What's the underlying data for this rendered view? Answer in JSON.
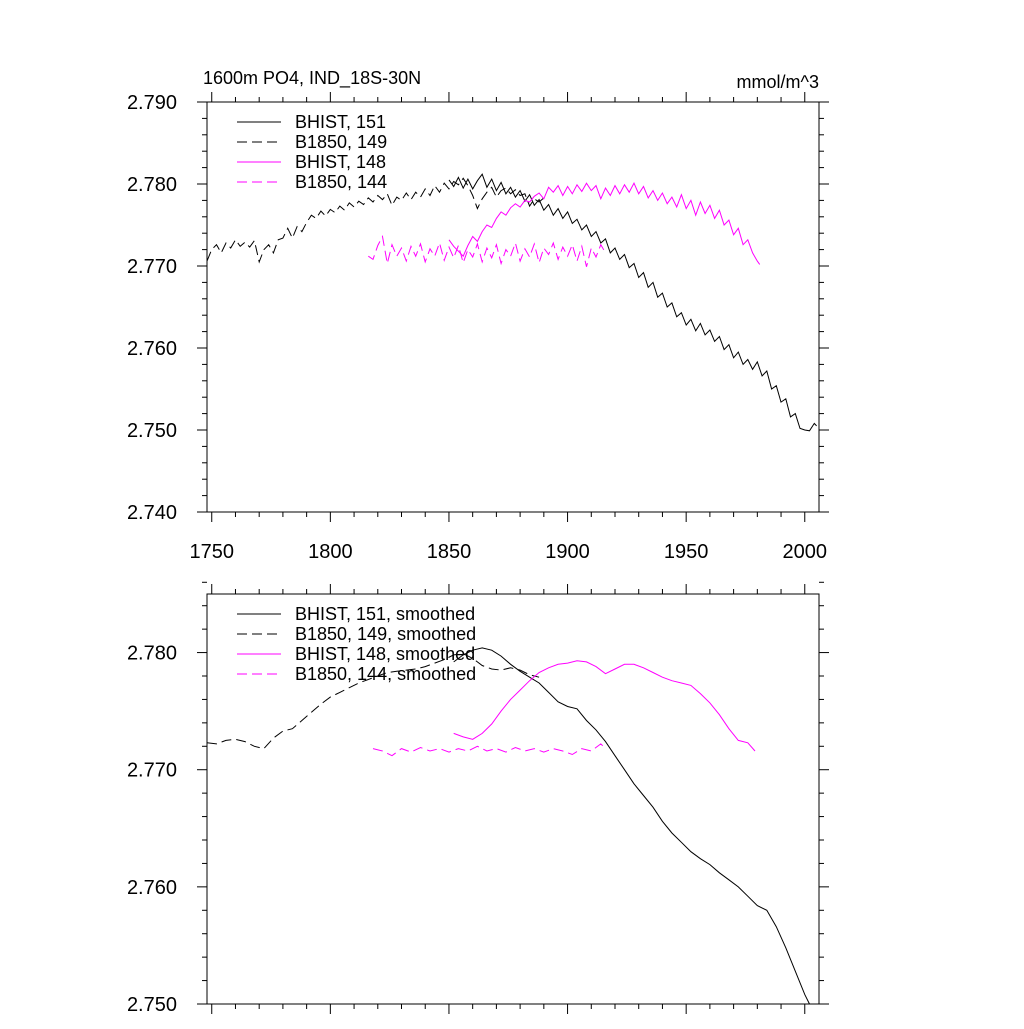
{
  "header": {
    "title": "1600m PO4, IND_18S-30N",
    "units": "mmol/m^3"
  },
  "colors": {
    "black_series": "#000000",
    "magenta_series": "#ff00ff",
    "axes": "#000000"
  },
  "chart_data": [
    {
      "type": "line",
      "title": "1600m PO4, IND_18S-30N",
      "units_label": "mmol/m^3",
      "xlim": [
        1748,
        2006
      ],
      "ylim": [
        2.74,
        2.79
      ],
      "x_ticks": [
        1750,
        1800,
        1850,
        1900,
        1950,
        2000
      ],
      "x_tick_labels": [
        "1750",
        "1800",
        "1850",
        "1900",
        "1950",
        "2000"
      ],
      "y_ticks": [
        2.74,
        2.75,
        2.76,
        2.77,
        2.78,
        2.79
      ],
      "y_tick_labels": [
        "2.740",
        "2.750",
        "2.760",
        "2.770",
        "2.780",
        "2.790"
      ],
      "legend_position": "top-left",
      "grid": false,
      "series": [
        {
          "name": "BHIST, 151",
          "color": "#000000",
          "dash": "solid",
          "x": [
            1850,
            1852,
            1854,
            1856,
            1858,
            1860,
            1862,
            1864,
            1866,
            1868,
            1870,
            1872,
            1874,
            1876,
            1878,
            1880,
            1882,
            1884,
            1886,
            1888,
            1890,
            1892,
            1894,
            1896,
            1898,
            1900,
            1902,
            1904,
            1906,
            1908,
            1910,
            1912,
            1914,
            1916,
            1918,
            1920,
            1922,
            1924,
            1926,
            1928,
            1930,
            1932,
            1934,
            1936,
            1938,
            1940,
            1942,
            1944,
            1946,
            1948,
            1950,
            1952,
            1954,
            1956,
            1958,
            1960,
            1962,
            1964,
            1966,
            1968,
            1970,
            1972,
            1974,
            1976,
            1978,
            1980,
            1982,
            1984,
            1986,
            1988,
            1990,
            1992,
            1994,
            1996,
            1998,
            2000,
            2002,
            2004,
            2005
          ],
          "y": [
            2.7805,
            2.7797,
            2.7808,
            2.7795,
            2.7806,
            2.7794,
            2.7804,
            2.7812,
            2.7796,
            2.7806,
            2.7792,
            2.7802,
            2.7788,
            2.7796,
            2.7784,
            2.7792,
            2.7779,
            2.7787,
            2.7774,
            2.7781,
            2.7768,
            2.7775,
            2.7762,
            2.777,
            2.7758,
            2.7766,
            2.7752,
            2.7757,
            2.7744,
            2.775,
            2.7736,
            2.7742,
            2.7728,
            2.7733,
            2.7716,
            2.7722,
            2.7708,
            2.7714,
            2.7698,
            2.7703,
            2.7686,
            2.7692,
            2.7674,
            2.768,
            2.7662,
            2.7667,
            2.765,
            2.7655,
            2.7638,
            2.7643,
            2.7628,
            2.7635,
            2.7621,
            2.763,
            2.7616,
            2.7622,
            2.7608,
            2.7614,
            2.7598,
            2.7604,
            2.7588,
            2.7595,
            2.758,
            2.7586,
            2.7574,
            2.7583,
            2.7566,
            2.7572,
            2.755,
            2.7554,
            2.7534,
            2.7538,
            2.7516,
            2.752,
            2.7502,
            2.75,
            2.7499,
            2.7508,
            2.7505
          ]
        },
        {
          "name": "B1850, 149",
          "color": "#000000",
          "dash": "dashed",
          "x": [
            1748,
            1750,
            1752,
            1754,
            1756,
            1758,
            1760,
            1762,
            1764,
            1766,
            1768,
            1770,
            1772,
            1774,
            1776,
            1778,
            1780,
            1782,
            1784,
            1786,
            1788,
            1790,
            1792,
            1794,
            1796,
            1798,
            1800,
            1802,
            1804,
            1806,
            1808,
            1810,
            1812,
            1814,
            1816,
            1818,
            1820,
            1822,
            1824,
            1826,
            1828,
            1830,
            1832,
            1834,
            1836,
            1838,
            1840,
            1842,
            1844,
            1846,
            1848,
            1850,
            1852,
            1854,
            1856,
            1858,
            1860,
            1862,
            1864,
            1866,
            1868,
            1870,
            1872,
            1874,
            1876,
            1878,
            1880,
            1882,
            1884,
            1886,
            1888,
            1890
          ],
          "y": [
            2.7706,
            2.772,
            2.7726,
            2.7716,
            2.7728,
            2.7722,
            2.7732,
            2.7724,
            2.7729,
            2.7723,
            2.7731,
            2.7705,
            2.772,
            2.7726,
            2.7716,
            2.7732,
            2.7734,
            2.7746,
            2.7734,
            2.7748,
            2.7742,
            2.7753,
            2.7762,
            2.7758,
            2.7767,
            2.7761,
            2.7769,
            2.7765,
            2.7773,
            2.7768,
            2.7777,
            2.7772,
            2.7779,
            2.7775,
            2.7783,
            2.7778,
            2.7786,
            2.7781,
            2.7788,
            2.7774,
            2.7784,
            2.778,
            2.7789,
            2.7781,
            2.779,
            2.7784,
            2.7794,
            2.7786,
            2.7798,
            2.779,
            2.7801,
            2.7794,
            2.7803,
            2.7799,
            2.7807,
            2.7798,
            2.7786,
            2.777,
            2.7782,
            2.779,
            2.7796,
            2.7784,
            2.7792,
            2.7795,
            2.7788,
            2.7793,
            2.7786,
            2.7788,
            2.7773,
            2.7782,
            2.7778,
            2.7783
          ]
        },
        {
          "name": "BHIST, 148",
          "color": "#ff00ff",
          "dash": "solid",
          "x": [
            1850,
            1852,
            1854,
            1856,
            1858,
            1860,
            1862,
            1864,
            1866,
            1868,
            1870,
            1872,
            1874,
            1876,
            1878,
            1880,
            1882,
            1884,
            1886,
            1888,
            1890,
            1892,
            1894,
            1896,
            1898,
            1900,
            1902,
            1904,
            1906,
            1908,
            1910,
            1912,
            1914,
            1916,
            1918,
            1920,
            1922,
            1924,
            1926,
            1928,
            1930,
            1932,
            1934,
            1936,
            1938,
            1940,
            1942,
            1944,
            1946,
            1948,
            1950,
            1952,
            1954,
            1956,
            1958,
            1960,
            1962,
            1964,
            1966,
            1968,
            1970,
            1972,
            1974,
            1976,
            1978,
            1980,
            1981
          ],
          "y": [
            2.7732,
            2.7724,
            2.7718,
            2.7712,
            2.7725,
            2.7736,
            2.773,
            2.7742,
            2.775,
            2.7747,
            2.7758,
            2.7766,
            2.7762,
            2.7771,
            2.7776,
            2.7772,
            2.778,
            2.7778,
            2.7785,
            2.7789,
            2.7782,
            2.7796,
            2.779,
            2.7798,
            2.7786,
            2.7797,
            2.7788,
            2.7799,
            2.7791,
            2.7801,
            2.7792,
            2.7798,
            2.7782,
            2.7795,
            2.7786,
            2.7798,
            2.7788,
            2.7799,
            2.779,
            2.7801,
            2.7788,
            2.7797,
            2.7783,
            2.7792,
            2.778,
            2.7789,
            2.7776,
            2.7784,
            2.7772,
            2.7787,
            2.777,
            2.778,
            2.7762,
            2.7778,
            2.7764,
            2.7774,
            2.7758,
            2.7768,
            2.775,
            2.7756,
            2.7738,
            2.7746,
            2.7726,
            2.7732,
            2.7716,
            2.7706,
            2.7702
          ]
        },
        {
          "name": "B1850, 144",
          "color": "#ff00ff",
          "dash": "dashed",
          "x": [
            1816,
            1818,
            1820,
            1822,
            1824,
            1826,
            1828,
            1830,
            1832,
            1834,
            1836,
            1838,
            1840,
            1842,
            1844,
            1846,
            1848,
            1850,
            1852,
            1854,
            1856,
            1858,
            1860,
            1862,
            1864,
            1866,
            1868,
            1870,
            1872,
            1874,
            1876,
            1878,
            1880,
            1882,
            1884,
            1886,
            1888,
            1890,
            1892,
            1894,
            1896,
            1898,
            1900,
            1902,
            1904,
            1906,
            1908,
            1910,
            1912,
            1914,
            1916
          ],
          "y": [
            2.7712,
            2.7708,
            2.7725,
            2.7736,
            2.7703,
            2.7726,
            2.7712,
            2.7722,
            2.7706,
            2.7724,
            2.7712,
            2.7727,
            2.7705,
            2.7721,
            2.7712,
            2.7728,
            2.7707,
            2.7723,
            2.771,
            2.7725,
            2.7704,
            2.772,
            2.7711,
            2.7727,
            2.7705,
            2.7722,
            2.771,
            2.7726,
            2.7703,
            2.772,
            2.7712,
            2.7728,
            2.7706,
            2.7721,
            2.7711,
            2.7727,
            2.7704,
            2.7722,
            2.7714,
            2.7728,
            2.7708,
            2.7723,
            2.7712,
            2.7726,
            2.7706,
            2.7724,
            2.7699,
            2.7722,
            2.7711,
            2.7726,
            2.7716
          ]
        }
      ]
    },
    {
      "type": "line",
      "title": "",
      "xlim": [
        1748,
        2006
      ],
      "ylim": [
        2.75,
        2.785
      ],
      "x_ticks": [
        1750,
        1800,
        1850,
        1900,
        1950,
        2000
      ],
      "x_tick_labels": [],
      "y_ticks": [
        2.75,
        2.76,
        2.77,
        2.78
      ],
      "y_tick_labels": [
        "2.750",
        "2.760",
        "2.770",
        "2.780"
      ],
      "legend_position": "top-left",
      "grid": false,
      "series": [
        {
          "name": "BHIST, 151, smoothed",
          "color": "#000000",
          "dash": "solid",
          "x": [
            1852,
            1856,
            1860,
            1864,
            1868,
            1872,
            1876,
            1880,
            1884,
            1888,
            1892,
            1896,
            1900,
            1904,
            1908,
            1912,
            1916,
            1920,
            1924,
            1928,
            1932,
            1936,
            1940,
            1944,
            1948,
            1952,
            1956,
            1960,
            1964,
            1968,
            1972,
            1976,
            1980,
            1984,
            1988,
            1992,
            1996,
            2000,
            2002
          ],
          "y": [
            2.7792,
            2.7798,
            2.7802,
            2.7804,
            2.7802,
            2.7797,
            2.779,
            2.7784,
            2.7779,
            2.7774,
            2.7766,
            2.7758,
            2.7754,
            2.7752,
            2.7742,
            2.7734,
            2.7724,
            2.7712,
            2.77,
            2.7688,
            2.7678,
            2.7668,
            2.7656,
            2.7646,
            2.7638,
            2.763,
            2.7624,
            2.7619,
            2.7612,
            2.7606,
            2.76,
            2.7592,
            2.7584,
            2.758,
            2.7566,
            2.7548,
            2.7528,
            2.7508,
            2.75
          ]
        },
        {
          "name": "B1850, 149, smoothed",
          "color": "#000000",
          "dash": "dashed",
          "x": [
            1748,
            1752,
            1756,
            1760,
            1764,
            1768,
            1772,
            1776,
            1780,
            1784,
            1788,
            1792,
            1796,
            1800,
            1804,
            1808,
            1812,
            1816,
            1820,
            1824,
            1828,
            1832,
            1836,
            1840,
            1844,
            1848,
            1852,
            1856,
            1860,
            1864,
            1868,
            1872,
            1876,
            1880,
            1884,
            1888
          ],
          "y": [
            2.7723,
            2.7722,
            2.7725,
            2.7726,
            2.7724,
            2.772,
            2.7718,
            2.7727,
            2.7733,
            2.7735,
            2.7742,
            2.7749,
            2.7756,
            2.7762,
            2.7766,
            2.777,
            2.7774,
            2.7777,
            2.778,
            2.7783,
            2.7784,
            2.7785,
            2.7786,
            2.7788,
            2.7791,
            2.7794,
            2.7798,
            2.7799,
            2.7795,
            2.7789,
            2.7786,
            2.7785,
            2.7787,
            2.7785,
            2.7781,
            2.7779
          ]
        },
        {
          "name": "BHIST, 148, smoothed",
          "color": "#ff00ff",
          "dash": "solid",
          "x": [
            1852,
            1856,
            1860,
            1864,
            1868,
            1872,
            1876,
            1880,
            1884,
            1888,
            1892,
            1896,
            1900,
            1904,
            1908,
            1912,
            1916,
            1920,
            1924,
            1928,
            1932,
            1936,
            1940,
            1944,
            1948,
            1952,
            1956,
            1960,
            1964,
            1968,
            1972,
            1976,
            1979
          ],
          "y": [
            2.7731,
            2.7728,
            2.7726,
            2.7731,
            2.7739,
            2.775,
            2.776,
            2.7768,
            2.7776,
            2.7783,
            2.7787,
            2.779,
            2.7791,
            2.7793,
            2.7792,
            2.7788,
            2.7782,
            2.7786,
            2.779,
            2.779,
            2.7787,
            2.7783,
            2.7779,
            2.7776,
            2.7774,
            2.7772,
            2.7765,
            2.7757,
            2.7747,
            2.7735,
            2.7725,
            2.7723,
            2.7716
          ]
        },
        {
          "name": "B1850, 144, smoothed",
          "color": "#ff00ff",
          "dash": "dashed",
          "x": [
            1818,
            1822,
            1826,
            1830,
            1834,
            1838,
            1842,
            1846,
            1850,
            1854,
            1858,
            1862,
            1866,
            1870,
            1874,
            1878,
            1882,
            1886,
            1890,
            1894,
            1898,
            1902,
            1906,
            1910,
            1914,
            1916
          ],
          "y": [
            2.7718,
            2.7716,
            2.7712,
            2.7718,
            2.7715,
            2.7719,
            2.7716,
            2.7718,
            2.7715,
            2.7718,
            2.7716,
            2.772,
            2.7716,
            2.7718,
            2.7715,
            2.7719,
            2.7716,
            2.7718,
            2.7715,
            2.7718,
            2.7716,
            2.7713,
            2.7718,
            2.7716,
            2.7722,
            2.7718
          ]
        }
      ]
    }
  ]
}
